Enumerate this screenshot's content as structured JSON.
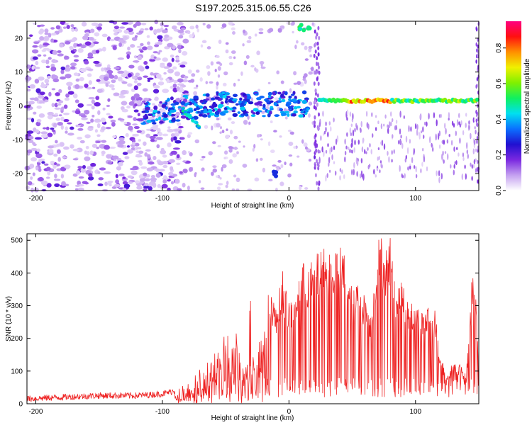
{
  "colors": {
    "line": "#ee2222",
    "axis": "#000000",
    "background": "#ffffff"
  },
  "chart_data": [
    {
      "type": "heatmap",
      "title": "S197.2025.315.06.55.C26",
      "xlabel": "Height of straight line (km)",
      "ylabel": "Frequency (Hz)",
      "xlim": [
        -207,
        150
      ],
      "ylim": [
        -25,
        25
      ],
      "xticks": [
        -200,
        -100,
        0,
        100
      ],
      "yticks": [
        -20,
        -10,
        0,
        10,
        20
      ],
      "colorbar": {
        "label": "Normalized spectral amplitude",
        "range": [
          0,
          0.95
        ],
        "ticks": [
          0.0,
          0.2,
          0.4,
          0.6,
          0.8
        ],
        "colormap": [
          "#ffffff",
          "#c4a0f0",
          "#7a28e0",
          "#2010d0",
          "#0a70ff",
          "#00e0f0",
          "#10f060",
          "#80f000",
          "#f0f000",
          "#ff9000",
          "#ff1010",
          "#ff0080"
        ]
      },
      "regions": [
        {
          "name": "noise scatter",
          "x": [
            -207,
            -80
          ],
          "y": [
            -25,
            25
          ],
          "level": 0.12
        },
        {
          "name": "sparse scatter",
          "x": [
            -80,
            22
          ],
          "y": [
            -25,
            25
          ],
          "level": 0.05
        },
        {
          "name": "carrier line",
          "x": [
            22,
            150
          ],
          "y": [
            1.5,
            1.5
          ],
          "level": 0.55
        },
        {
          "name": "tilted trace",
          "x": [
            -115,
            -70
          ],
          "y": [
            -2,
            -7
          ],
          "level": 0.35
        },
        {
          "name": "blob",
          "x": [
            -20,
            -8
          ],
          "y": [
            -20,
            -20
          ],
          "level": 0.3
        },
        {
          "name": "blob",
          "x": [
            8,
            18
          ],
          "y": [
            23,
            23
          ],
          "level": 0.5
        }
      ]
    },
    {
      "type": "line",
      "title": "",
      "xlabel": "Height of straight line (km)",
      "ylabel": "SNR (10 * v/v)",
      "xlim": [
        -207,
        150
      ],
      "ylim": [
        0,
        520
      ],
      "xticks": [
        -200,
        -100,
        0,
        100
      ],
      "yticks": [
        0,
        100,
        200,
        300,
        400,
        500
      ],
      "series": [
        {
          "name": "SNR",
          "x": [
            -207,
            -180,
            -150,
            -120,
            -100,
            -80,
            -70,
            -60,
            -50,
            -45,
            -40,
            -35,
            -30,
            -25,
            -22,
            -20,
            -15,
            -10,
            -5,
            0,
            5,
            10,
            15,
            20,
            25,
            30,
            35,
            40,
            45,
            50,
            55,
            60,
            65,
            70,
            72,
            75,
            80,
            85,
            90,
            95,
            100,
            105,
            110,
            115,
            120,
            125,
            130,
            135,
            140,
            145,
            148,
            150
          ],
          "values": [
            15,
            20,
            25,
            25,
            30,
            50,
            90,
            120,
            180,
            220,
            170,
            200,
            280,
            120,
            300,
            180,
            350,
            260,
            380,
            280,
            320,
            400,
            380,
            410,
            430,
            440,
            430,
            445,
            420,
            320,
            350,
            300,
            260,
            440,
            500,
            420,
            480,
            330,
            340,
            300,
            280,
            260,
            280,
            270,
            130,
            90,
            120,
            110,
            80,
            380,
            320,
            60
          ]
        }
      ]
    }
  ]
}
